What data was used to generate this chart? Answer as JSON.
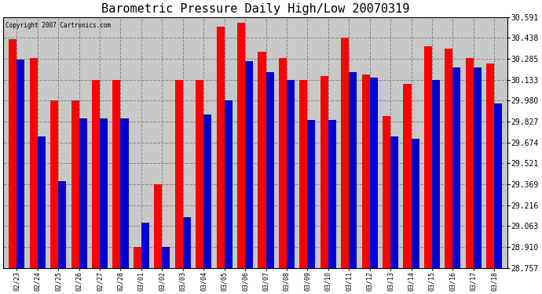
{
  "title": "Barometric Pressure Daily High/Low 20070319",
  "copyright": "Copyright 2007 Cartronics.com",
  "dates": [
    "02/23",
    "02/24",
    "02/25",
    "02/26",
    "02/27",
    "02/28",
    "03/01",
    "03/02",
    "03/03",
    "03/04",
    "03/05",
    "03/06",
    "03/07",
    "03/08",
    "03/09",
    "03/10",
    "03/11",
    "03/12",
    "03/13",
    "03/14",
    "03/15",
    "03/16",
    "03/17",
    "03/18"
  ],
  "highs": [
    30.43,
    30.29,
    29.98,
    29.98,
    30.13,
    30.13,
    28.91,
    29.37,
    30.13,
    30.13,
    30.52,
    30.55,
    30.34,
    30.29,
    30.13,
    30.16,
    30.44,
    30.17,
    29.87,
    30.1,
    30.38,
    30.36,
    30.29,
    30.25
  ],
  "lows": [
    30.28,
    29.72,
    29.39,
    29.85,
    29.85,
    29.85,
    29.09,
    28.91,
    29.13,
    29.88,
    29.98,
    30.27,
    30.19,
    30.13,
    29.84,
    29.84,
    30.19,
    30.15,
    29.72,
    29.7,
    30.13,
    30.22,
    30.22,
    29.96
  ],
  "ymin": 28.757,
  "ymax": 30.591,
  "yticks": [
    28.757,
    28.91,
    29.063,
    29.216,
    29.369,
    29.521,
    29.674,
    29.827,
    29.98,
    30.133,
    30.285,
    30.438,
    30.591
  ],
  "high_color": "#ff0000",
  "low_color": "#0000cc",
  "bg_color": "#ffffff",
  "plot_bg": "#c8c8c8",
  "grid_color": "#888888",
  "title_fontsize": 11,
  "tick_fontsize": 6,
  "ylabel_fontsize": 7
}
